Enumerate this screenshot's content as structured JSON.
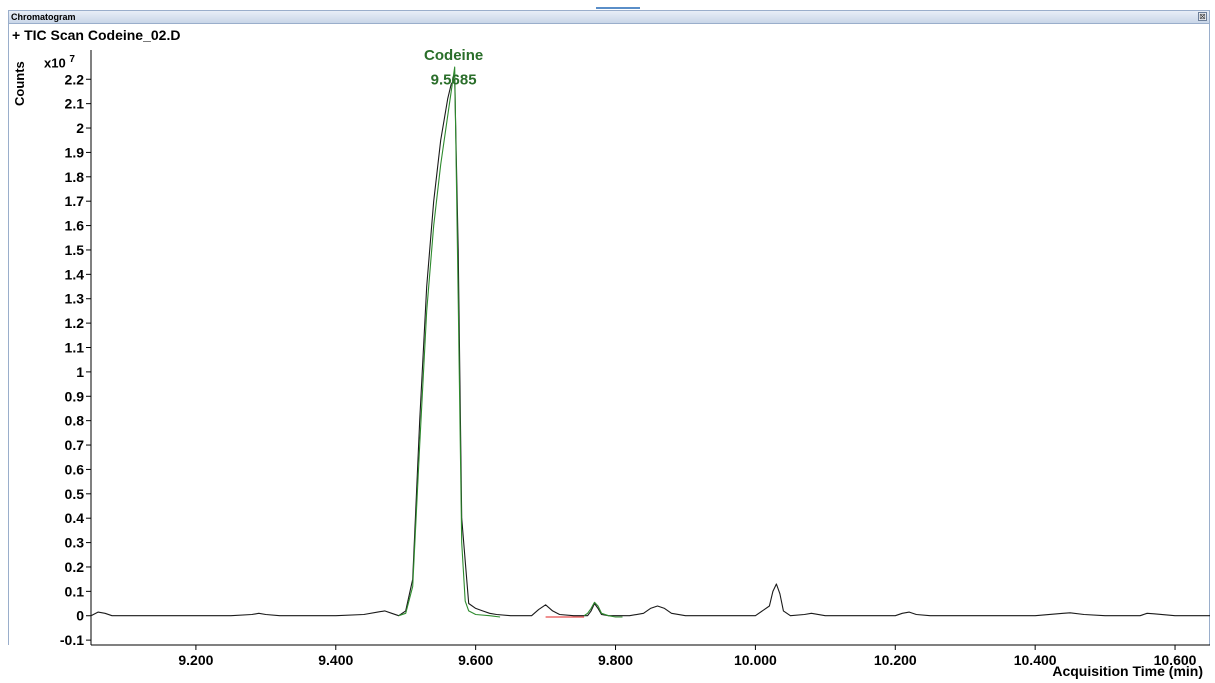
{
  "window": {
    "title": "Chromatogram",
    "close_glyph": "⊠",
    "close_icon": "close-icon"
  },
  "trace_title": "+ TIC Scan Codeine_02.D",
  "chart_data": {
    "type": "line",
    "title": "+ TIC Scan Codeine_02.D",
    "xlabel": "Acquisition Time (min)",
    "ylabel": "Counts",
    "y_scale_prefix": "x10",
    "y_scale_exponent": "7",
    "xlim": [
      9.05,
      10.65
    ],
    "ylim": [
      -0.12,
      2.32
    ],
    "x_ticks": [
      {
        "value": 9.2,
        "label": "9.200"
      },
      {
        "value": 9.4,
        "label": "9.400"
      },
      {
        "value": 9.6,
        "label": "9.600"
      },
      {
        "value": 9.8,
        "label": "9.800"
      },
      {
        "value": 10.0,
        "label": "10.000"
      },
      {
        "value": 10.2,
        "label": "10.200"
      },
      {
        "value": 10.4,
        "label": "10.400"
      },
      {
        "value": 10.6,
        "label": "10.600"
      }
    ],
    "y_ticks": [
      {
        "value": 2.2,
        "label": "2.2"
      },
      {
        "value": 2.1,
        "label": "2.1"
      },
      {
        "value": 2.0,
        "label": "2"
      },
      {
        "value": 1.9,
        "label": "1.9"
      },
      {
        "value": 1.8,
        "label": "1.8"
      },
      {
        "value": 1.7,
        "label": "1.7"
      },
      {
        "value": 1.6,
        "label": "1.6"
      },
      {
        "value": 1.5,
        "label": "1.5"
      },
      {
        "value": 1.4,
        "label": "1.4"
      },
      {
        "value": 1.3,
        "label": "1.3"
      },
      {
        "value": 1.2,
        "label": "1.2"
      },
      {
        "value": 1.1,
        "label": "1.1"
      },
      {
        "value": 1.0,
        "label": "1"
      },
      {
        "value": 0.9,
        "label": "0.9"
      },
      {
        "value": 0.8,
        "label": "0.8"
      },
      {
        "value": 0.7,
        "label": "0.7"
      },
      {
        "value": 0.6,
        "label": "0.6"
      },
      {
        "value": 0.5,
        "label": "0.5"
      },
      {
        "value": 0.4,
        "label": "0.4"
      },
      {
        "value": 0.3,
        "label": "0.3"
      },
      {
        "value": 0.2,
        "label": "0.2"
      },
      {
        "value": 0.1,
        "label": "0.1"
      },
      {
        "value": 0.0,
        "label": "0"
      },
      {
        "value": -0.1,
        "label": "-0.1"
      }
    ],
    "grid": false,
    "series": [
      {
        "color": "#1a1a1a",
        "x": [
          9.05,
          9.06,
          9.07,
          9.08,
          9.1,
          9.15,
          9.2,
          9.25,
          9.28,
          9.29,
          9.3,
          9.32,
          9.35,
          9.4,
          9.44,
          9.46,
          9.47,
          9.48,
          9.49,
          9.5,
          9.51,
          9.52,
          9.53,
          9.54,
          9.55,
          9.56,
          9.565,
          9.57,
          9.575,
          9.58,
          9.59,
          9.6,
          9.61,
          9.62,
          9.63,
          9.65,
          9.68,
          9.69,
          9.7,
          9.71,
          9.72,
          9.74,
          9.76,
          9.765,
          9.77,
          9.775,
          9.78,
          9.79,
          9.8,
          9.82,
          9.84,
          9.85,
          9.86,
          9.87,
          9.88,
          9.9,
          9.95,
          10.0,
          10.02,
          10.025,
          10.03,
          10.035,
          10.04,
          10.05,
          10.07,
          10.08,
          10.1,
          10.15,
          10.2,
          10.21,
          10.22,
          10.23,
          10.25,
          10.3,
          10.4,
          10.44,
          10.45,
          10.47,
          10.5,
          10.55,
          10.56,
          10.57,
          10.6,
          10.65
        ],
        "y": [
          0.0,
          0.015,
          0.01,
          0.0,
          0.0,
          0.0,
          0.0,
          0.0,
          0.005,
          0.01,
          0.005,
          0.0,
          0.0,
          0.0,
          0.005,
          0.015,
          0.02,
          0.01,
          0.0,
          0.02,
          0.15,
          0.8,
          1.35,
          1.7,
          1.95,
          2.12,
          2.18,
          2.2,
          1.5,
          0.4,
          0.05,
          0.03,
          0.02,
          0.01,
          0.005,
          0.0,
          0.0,
          0.025,
          0.045,
          0.02,
          0.005,
          0.0,
          0.0,
          0.02,
          0.05,
          0.03,
          0.005,
          0.0,
          0.0,
          0.0,
          0.01,
          0.03,
          0.04,
          0.03,
          0.01,
          0.0,
          0.0,
          0.0,
          0.04,
          0.1,
          0.13,
          0.09,
          0.02,
          0.0,
          0.005,
          0.01,
          0.0,
          0.0,
          0.0,
          0.01,
          0.015,
          0.005,
          0.0,
          0.0,
          0.0,
          0.01,
          0.012,
          0.005,
          0.0,
          0.0,
          0.01,
          0.008,
          0.0,
          0.0
        ]
      },
      {
        "color": "#2e8b2e",
        "x": [
          9.49,
          9.5,
          9.51,
          9.52,
          9.53,
          9.54,
          9.55,
          9.56,
          9.565,
          9.57,
          9.575,
          9.58,
          9.585,
          9.59,
          9.6,
          9.62,
          9.635
        ],
        "y": [
          0.0,
          0.01,
          0.12,
          0.7,
          1.25,
          1.6,
          1.85,
          2.05,
          2.15,
          2.25,
          1.3,
          0.3,
          0.06,
          0.02,
          0.005,
          0.0,
          -0.005
        ]
      },
      {
        "color": "#2e8b2e",
        "x": [
          9.755,
          9.76,
          9.765,
          9.77,
          9.775,
          9.78,
          9.79,
          9.8,
          9.81
        ],
        "y": [
          0.0,
          0.01,
          0.03,
          0.055,
          0.04,
          0.01,
          0.0,
          -0.005,
          -0.005
        ]
      },
      {
        "color": "#e02020",
        "x": [
          9.7,
          9.755
        ],
        "y": [
          -0.005,
          -0.005
        ]
      }
    ],
    "annotations": [
      {
        "text": "Codeine",
        "x": 9.5685,
        "y": 2.3,
        "color": "#2a6e2a"
      },
      {
        "text": "9.5685",
        "x": 9.5685,
        "y": 2.2,
        "color": "#2a6e2a"
      }
    ]
  }
}
